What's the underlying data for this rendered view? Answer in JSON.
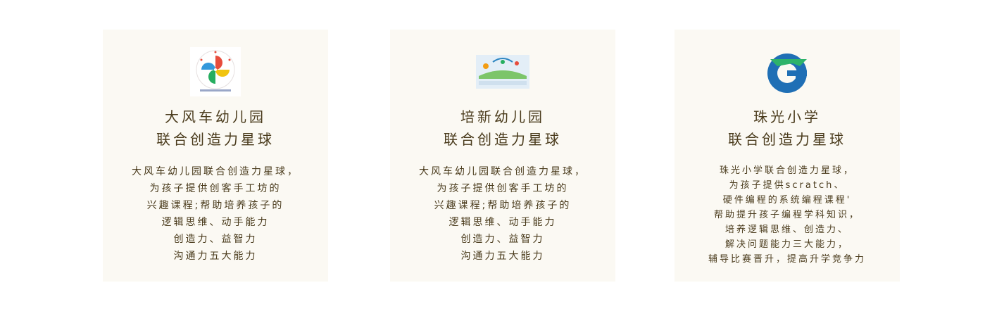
{
  "colors": {
    "card_bg": "#fbf9f3",
    "text": "#4a3b1c"
  },
  "cards": [
    {
      "logo_icon": "pinwheel-logo-icon",
      "title_line1": "大风车幼儿园",
      "title_line2": "联合创造力星球",
      "desc": [
        "大风车幼儿园联合创造力星球，",
        "为孩子提供创客手工坊的",
        "兴趣课程;帮助培养孩子的",
        "逻辑思维、动手能力",
        "创造力、益智力",
        "沟通力五大能力"
      ]
    },
    {
      "logo_icon": "kindergarten-banner-logo-icon",
      "title_line1": "培新幼儿园",
      "title_line2": "联合创造力星球",
      "desc": [
        "大风车幼儿园联合创造力星球，",
        "为孩子提供创客手工坊的",
        "兴趣课程;帮助培养孩子的",
        "逻辑思维、动手能力",
        "创造力、益智力",
        "沟通力五大能力"
      ]
    },
    {
      "logo_icon": "school-g-logo-icon",
      "title_line1": "珠光小学",
      "title_line2": "联合创造力星球",
      "desc": [
        "珠光小学联合创造力星球，",
        "为孩子提供scratch、",
        "硬件编程的系统编程课程'",
        "帮助提升孩子编程学科知识，",
        "培养逻辑思维、创造力、",
        "解决问题能力三大能力，",
        "辅导比赛晋升，提高升学竞争力"
      ]
    }
  ]
}
